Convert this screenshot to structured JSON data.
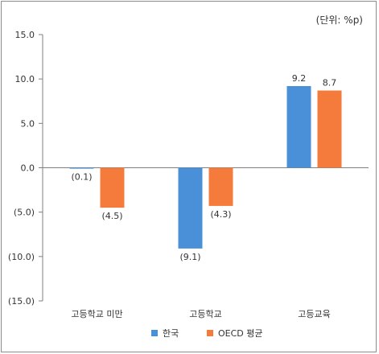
{
  "chart_data": {
    "type": "bar",
    "unit_label": "(단위: %p)",
    "categories": [
      "고등학교 미만",
      "고등학교",
      "고등교육"
    ],
    "series": [
      {
        "name": "한국",
        "color": "#4a90d9",
        "values": [
          -0.1,
          -9.1,
          9.2
        ],
        "labels": [
          "(0.1)",
          "(9.1)",
          "9.2"
        ]
      },
      {
        "name": "OECD 평균",
        "color": "#f57b3d",
        "values": [
          -4.5,
          -4.3,
          8.7
        ],
        "labels": [
          "(4.5)",
          "(4.3)",
          "8.7"
        ]
      }
    ],
    "y_ticks": [
      15,
      10,
      5,
      0,
      -5,
      -10,
      -15
    ],
    "y_tick_labels": [
      "15.0",
      "10.0",
      "5.0",
      "0.0",
      "(5.0)",
      "(10.0)",
      "(15.0)"
    ],
    "ylim": [
      -15,
      15
    ],
    "legend_position": "bottom-center",
    "grid": false
  }
}
